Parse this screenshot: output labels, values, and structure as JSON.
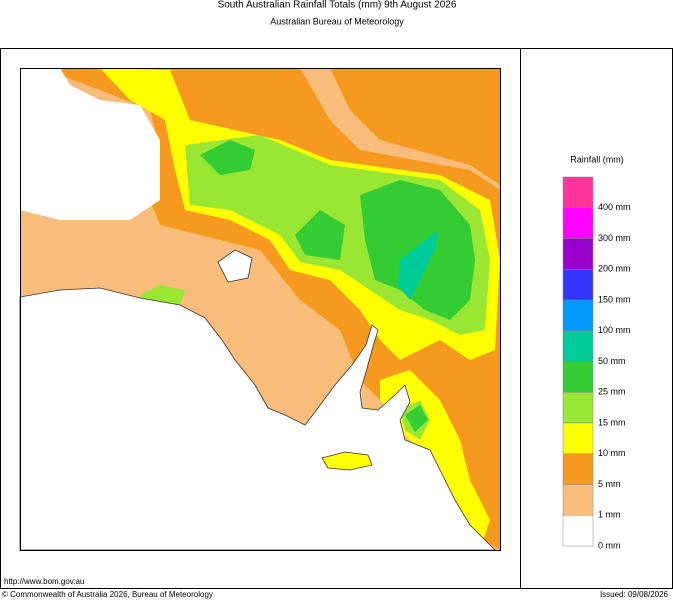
{
  "header": {
    "title": "South Australian Rainfall Totals (mm)   9th August 2026",
    "subtitle": "Australian Bureau of Meteorology"
  },
  "legend": {
    "title": "Rainfall (mm)",
    "items": [
      {
        "label": "400 mm",
        "color": "#ff3399"
      },
      {
        "label": "300 mm",
        "color": "#ff00ff"
      },
      {
        "label": "200 mm",
        "color": "#9900cc"
      },
      {
        "label": "150 mm",
        "color": "#3333ff"
      },
      {
        "label": "100 mm",
        "color": "#0099ff"
      },
      {
        "label": "50 mm",
        "color": "#00cc99"
      },
      {
        "label": "25 mm",
        "color": "#33cc33"
      },
      {
        "label": "15 mm",
        "color": "#99e633"
      },
      {
        "label": "10 mm",
        "color": "#ffff00"
      },
      {
        "label": "5 mm",
        "color": "#f59a1e"
      },
      {
        "label": "1 mm",
        "color": "#f8bd7a"
      },
      {
        "label": "0 mm",
        "color": "#ffffff"
      }
    ]
  },
  "footer": {
    "url": "http://www.bom.gov.au",
    "copyright": "© Commonwealth of Australia 2026, Bureau of Meteorology",
    "issued": "Issued: 09/08/2026"
  }
}
